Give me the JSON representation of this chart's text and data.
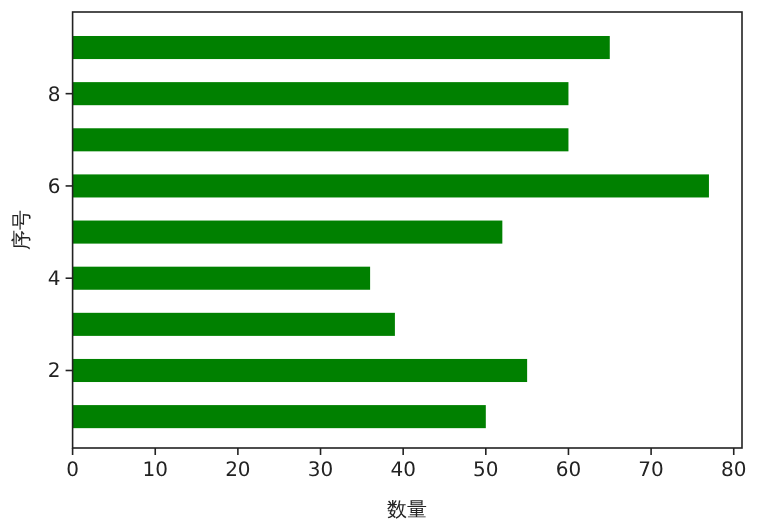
{
  "chart_data": {
    "type": "bar",
    "orientation": "horizontal",
    "xlabel": "数量",
    "ylabel": "序号",
    "x": [
      1,
      2,
      3,
      4,
      5,
      6,
      7,
      8,
      9
    ],
    "values": [
      50,
      55,
      39,
      36,
      52,
      77,
      60,
      60,
      65
    ],
    "color": "#008000",
    "xlim": [
      0,
      81
    ],
    "xticks": [
      0,
      10,
      20,
      30,
      40,
      50,
      60,
      70,
      80
    ],
    "ylim": [
      0.32,
      9.77
    ],
    "yticks": [
      2,
      4,
      6,
      8
    ],
    "grid": false
  }
}
